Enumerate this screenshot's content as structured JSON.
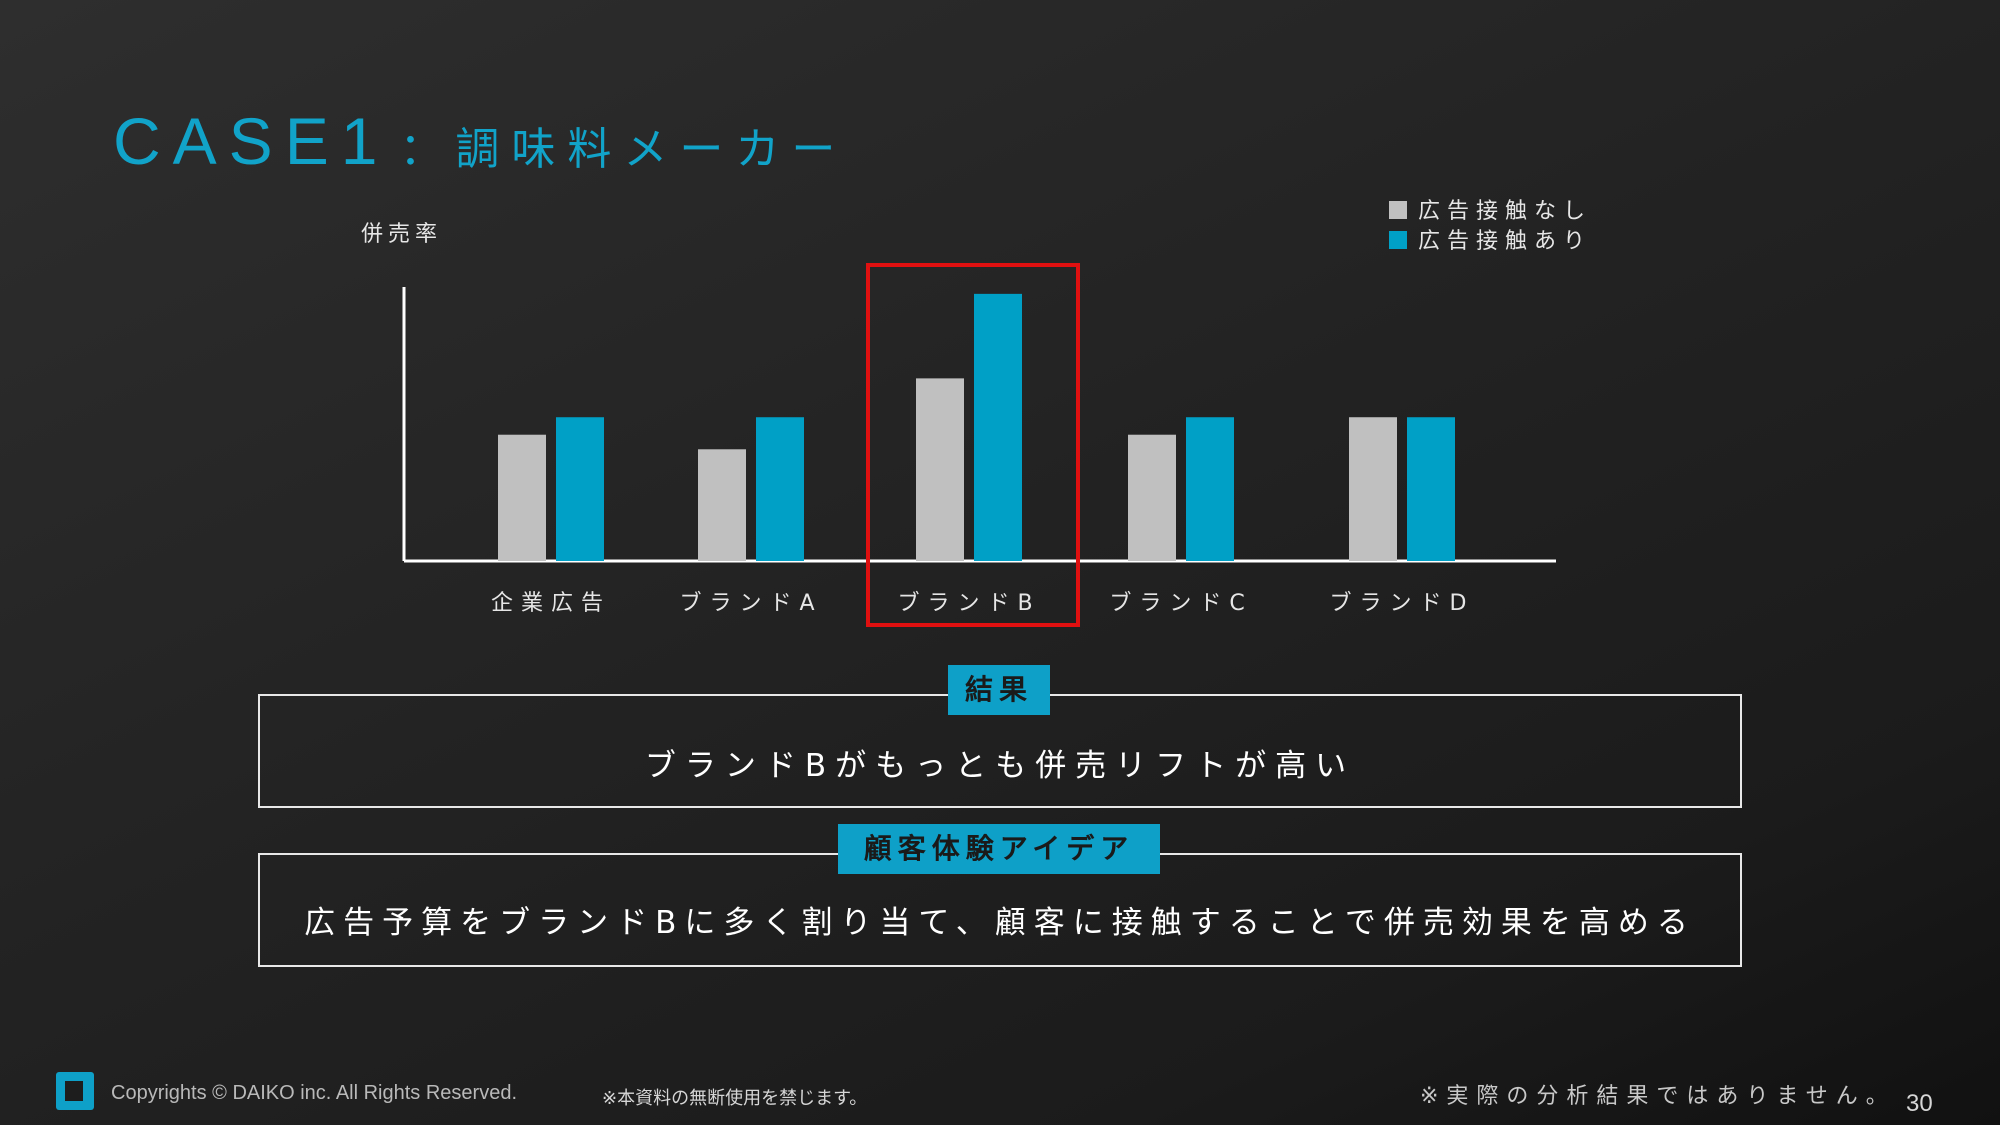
{
  "title": {
    "case_label": "CASE1",
    "subject": "：調味料メーカー"
  },
  "colors": {
    "accent": "#0ea0c8",
    "bar_no_ad": "#c0c0c0",
    "bar_ad": "#00a0c6",
    "highlight": "#e01010"
  },
  "chart_data": {
    "type": "bar",
    "ylabel": "併売率",
    "categories": [
      "企業広告",
      "ブランドA",
      "ブランドB",
      "ブランドC",
      "ブランドD"
    ],
    "series": [
      {
        "name": "広告接触なし",
        "values": [
          13,
          11.5,
          18.8,
          13,
          14.8
        ]
      },
      {
        "name": "広告接触あり",
        "values": [
          14.8,
          14.8,
          27.5,
          14.8,
          14.8
        ]
      }
    ],
    "ylim": [
      0,
      28
    ],
    "grid": false,
    "legend_position": "top-right",
    "highlight_category": "ブランドB"
  },
  "result": {
    "tag": "結果",
    "text": "ブランドBがもっとも併売リフトが高い"
  },
  "idea": {
    "tag": "顧客体験アイデア",
    "text": "広告予算をブランドBに多く割り当て、顧客に接触することで併売効果を高める"
  },
  "footer": {
    "copyright": "Copyrights © DAIKO inc. All Rights Reserved.",
    "notice": "※本資料の無断使用を禁じます。",
    "disclaimer": "※実際の分析結果ではありません。",
    "page_number": "30"
  }
}
